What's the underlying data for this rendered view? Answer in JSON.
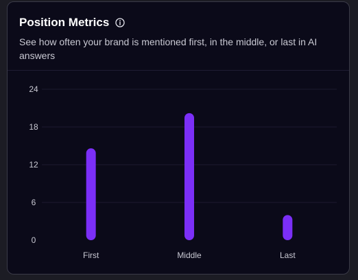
{
  "card": {
    "title": "Position Metrics",
    "info_icon": "info-circle-icon",
    "subtitle": "See how often your brand is mentioned first, in the middle, or last in AI answers"
  },
  "colors": {
    "background": "#0b0a19",
    "bar": "#7b2ff7",
    "grid": "#1c1a30",
    "tick_text": "#c9c9d3"
  },
  "chart_data": {
    "type": "bar",
    "categories": [
      "First",
      "Middle",
      "Last"
    ],
    "values": [
      14.6,
      20.2,
      4.0
    ],
    "yticks": [
      0,
      6,
      12,
      18,
      24
    ],
    "ylim": [
      0,
      24
    ],
    "grid": true,
    "legend": "none",
    "xlabel": "",
    "ylabel": ""
  }
}
